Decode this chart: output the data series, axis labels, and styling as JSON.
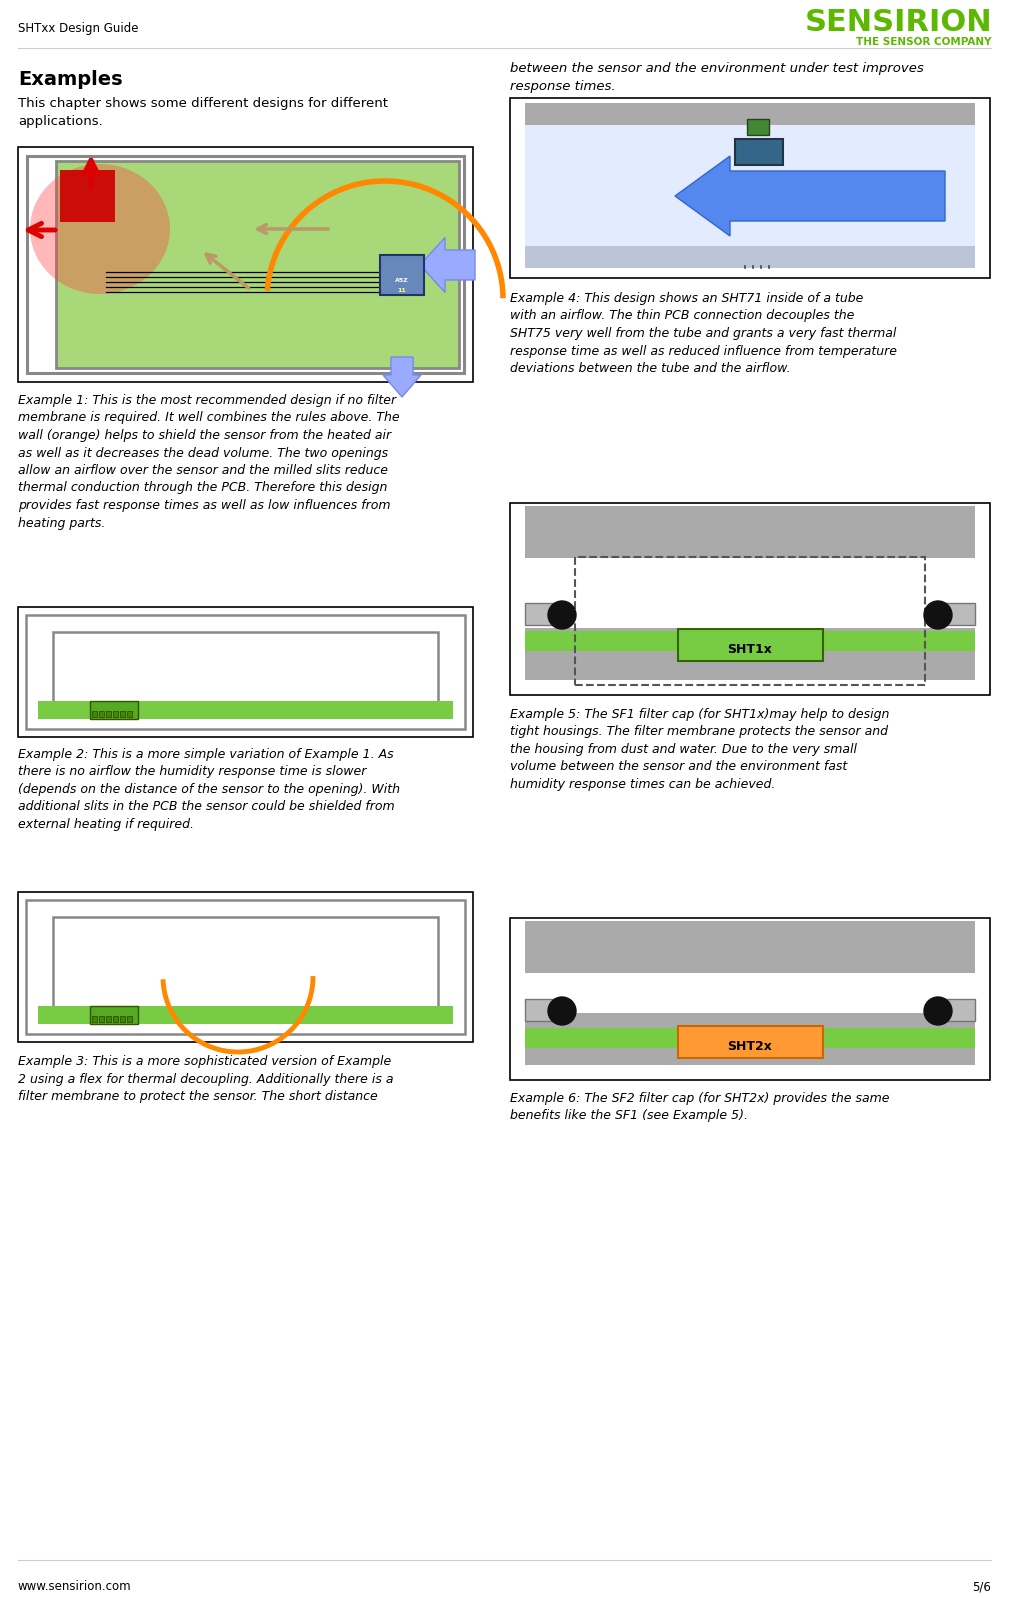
{
  "page_title": "SHTxx Design Guide",
  "logo_text": "SENSIRION",
  "logo_subtext": "THE SENSOR COMPANY",
  "logo_color": "#5cb800",
  "footer_left": "www.sensirion.com",
  "footer_right": "5/6",
  "section_title": "Examples",
  "section_intro": "This chapter shows some different designs for different\napplications.",
  "right_col_intro": "between the sensor and the environment under test improves\nresponse times.",
  "example1_caption": "Example 1: This is the most recommended design if no filter\nmembrane is required. It well combines the rules above. The\nwall (orange) helps to shield the sensor from the heated air\nas well as it decreases the dead volume. The two openings\nallow an airflow over the sensor and the milled slits reduce\nthermal conduction through the PCB. Therefore this design\nprovides fast response times as well as low influences from\nheating parts.",
  "example2_caption": "Example 2: This is a more simple variation of Example 1. As\nthere is no airflow the humidity response time is slower\n(depends on the distance of the sensor to the opening). With\nadditional slits in the PCB the sensor could be shielded from\nexternal heating if required.",
  "example3_caption": "Example 3: This is a more sophisticated version of Example\n2 using a flex for thermal decoupling. Additionally there is a\nfilter membrane to protect the sensor. The short distance",
  "example4_caption": "Example 4: This design shows an SHT71 inside of a tube\nwith an airflow. The thin PCB connection decouples the\nSHT75 very well from the tube and grants a very fast thermal\nresponse time as well as reduced influence from temperature\ndeviations between the tube and the airflow.",
  "example5_caption": "Example 5: The SF1 filter cap (for SHT1x)may help to design\ntight housings. The filter membrane protects the sensor and\nthe housing from dust and water. Due to the very small\nvolume between the sensor and the environment fast\nhumidity response times can be achieved.",
  "example6_caption": "Example 6: The SF2 filter cap (for SHT2x) provides the same\nbenefits like the SF1 (see Example 5).",
  "background_color": "#ffffff",
  "text_color": "#000000",
  "body_font_size": 9.5,
  "caption_font_size": 9.0,
  "title_font_size": 14,
  "header_font_size": 8.5
}
